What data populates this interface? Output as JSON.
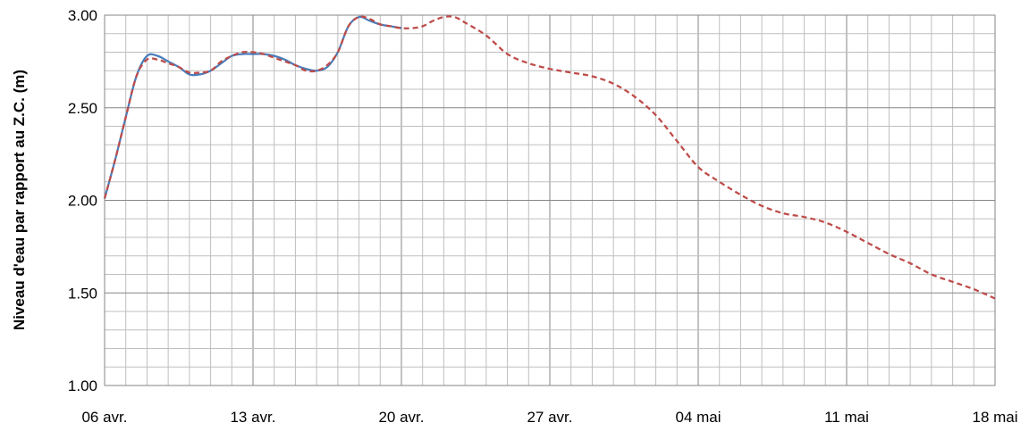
{
  "chart_data": {
    "type": "line",
    "title": "",
    "xlabel": "",
    "ylabel": "Niveau d'eau par rapport au Z.C. (m)",
    "xlim": [
      "2012-04-06",
      "2012-05-18"
    ],
    "ylim": [
      1.0,
      3.0
    ],
    "x_ticks": [
      "06 avr.",
      "13 avr.",
      "20 avr.",
      "27 avr.",
      "04 mai",
      "11 mai",
      "18 mai"
    ],
    "y_ticks": [
      "1.00",
      "1.50",
      "2.00",
      "2.50",
      "3.00"
    ],
    "grid": true,
    "legend": "none",
    "series": [
      {
        "style": "solid",
        "color": "#4a7ebb",
        "points": [
          [
            "2012-04-06T00:00",
            2.01
          ],
          [
            "2012-04-06T12:00",
            2.22
          ],
          [
            "2012-04-07T00:00",
            2.45
          ],
          [
            "2012-04-07T12:00",
            2.67
          ],
          [
            "2012-04-08T00:00",
            2.78
          ],
          [
            "2012-04-08T12:00",
            2.78
          ],
          [
            "2012-04-09T00:00",
            2.75
          ],
          [
            "2012-04-09T12:00",
            2.72
          ],
          [
            "2012-04-10T00:00",
            2.68
          ],
          [
            "2012-04-10T12:00",
            2.68
          ],
          [
            "2012-04-11T00:00",
            2.7
          ],
          [
            "2012-04-11T12:00",
            2.74
          ],
          [
            "2012-04-12T00:00",
            2.78
          ],
          [
            "2012-04-12T12:00",
            2.79
          ],
          [
            "2012-04-13T00:00",
            2.79
          ],
          [
            "2012-04-13T12:00",
            2.79
          ],
          [
            "2012-04-14T00:00",
            2.78
          ],
          [
            "2012-04-14T12:00",
            2.76
          ],
          [
            "2012-04-15T00:00",
            2.73
          ],
          [
            "2012-04-15T12:00",
            2.71
          ],
          [
            "2012-04-16T00:00",
            2.7
          ],
          [
            "2012-04-16T12:00",
            2.72
          ],
          [
            "2012-04-17T00:00",
            2.8
          ],
          [
            "2012-04-17T12:00",
            2.94
          ],
          [
            "2012-04-18T00:00",
            2.99
          ],
          [
            "2012-04-18T12:00",
            2.97
          ],
          [
            "2012-04-19T00:00",
            2.95
          ],
          [
            "2012-04-19T12:00",
            2.94
          ],
          [
            "2012-04-20T00:00",
            2.93
          ]
        ]
      },
      {
        "style": "dashed",
        "color": "#be4b48",
        "points": [
          [
            "2012-04-06T00:00",
            2.01
          ],
          [
            "2012-04-06T12:00",
            2.22
          ],
          [
            "2012-04-07T00:00",
            2.45
          ],
          [
            "2012-04-07T12:00",
            2.67
          ],
          [
            "2012-04-08T00:00",
            2.76
          ],
          [
            "2012-04-08T12:00",
            2.76
          ],
          [
            "2012-04-09T00:00",
            2.74
          ],
          [
            "2012-04-09T12:00",
            2.72
          ],
          [
            "2012-04-10T00:00",
            2.69
          ],
          [
            "2012-04-10T12:00",
            2.69
          ],
          [
            "2012-04-11T00:00",
            2.7
          ],
          [
            "2012-04-11T12:00",
            2.75
          ],
          [
            "2012-04-12T00:00",
            2.78
          ],
          [
            "2012-04-12T12:00",
            2.8
          ],
          [
            "2012-04-13T00:00",
            2.8
          ],
          [
            "2012-04-13T12:00",
            2.79
          ],
          [
            "2012-04-14T00:00",
            2.77
          ],
          [
            "2012-04-14T12:00",
            2.75
          ],
          [
            "2012-04-15T00:00",
            2.73
          ],
          [
            "2012-04-15T12:00",
            2.7
          ],
          [
            "2012-04-16T00:00",
            2.7
          ],
          [
            "2012-04-16T12:00",
            2.73
          ],
          [
            "2012-04-17T00:00",
            2.8
          ],
          [
            "2012-04-17T12:00",
            2.94
          ],
          [
            "2012-04-18T00:00",
            2.99
          ],
          [
            "2012-04-18T12:00",
            2.98
          ],
          [
            "2012-04-19T00:00",
            2.95
          ],
          [
            "2012-04-19T12:00",
            2.94
          ],
          [
            "2012-04-20T00:00",
            2.93
          ],
          [
            "2012-04-20T12:00",
            2.93
          ],
          [
            "2012-04-21T00:00",
            2.94
          ],
          [
            "2012-04-21T12:00",
            2.97
          ],
          [
            "2012-04-22T00:00",
            2.99
          ],
          [
            "2012-04-22T12:00",
            2.99
          ],
          [
            "2012-04-23T00:00",
            2.96
          ],
          [
            "2012-04-24T00:00",
            2.89
          ],
          [
            "2012-04-25T00:00",
            2.79
          ],
          [
            "2012-04-26T00:00",
            2.74
          ],
          [
            "2012-04-27T00:00",
            2.71
          ],
          [
            "2012-04-28T00:00",
            2.69
          ],
          [
            "2012-04-29T00:00",
            2.67
          ],
          [
            "2012-04-30T00:00",
            2.63
          ],
          [
            "2012-05-01T00:00",
            2.56
          ],
          [
            "2012-05-02T00:00",
            2.46
          ],
          [
            "2012-05-03T00:00",
            2.32
          ],
          [
            "2012-05-04T00:00",
            2.18
          ],
          [
            "2012-05-05T00:00",
            2.1
          ],
          [
            "2012-05-06T00:00",
            2.03
          ],
          [
            "2012-05-07T00:00",
            1.97
          ],
          [
            "2012-05-08T00:00",
            1.93
          ],
          [
            "2012-05-09T00:00",
            1.91
          ],
          [
            "2012-05-10T00:00",
            1.88
          ],
          [
            "2012-05-11T00:00",
            1.83
          ],
          [
            "2012-05-12T00:00",
            1.77
          ],
          [
            "2012-05-13T00:00",
            1.71
          ],
          [
            "2012-05-14T00:00",
            1.66
          ],
          [
            "2012-05-15T00:00",
            1.6
          ],
          [
            "2012-05-16T00:00",
            1.56
          ],
          [
            "2012-05-17T00:00",
            1.52
          ],
          [
            "2012-05-18T00:00",
            1.47
          ]
        ]
      }
    ]
  }
}
